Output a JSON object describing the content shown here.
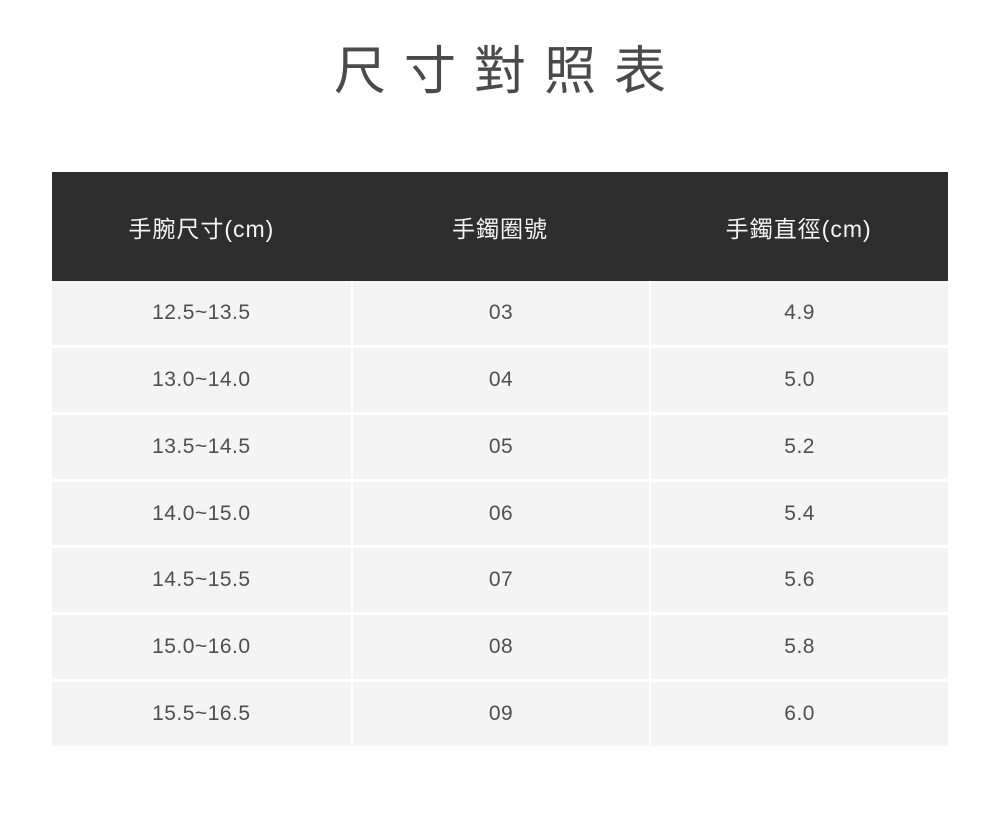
{
  "title": "尺寸對照表",
  "chart_data": {
    "type": "table",
    "title": "尺寸對照表",
    "columns": [
      "手腕尺寸(cm)",
      "手鐲圈號",
      "手鐲直徑(cm)"
    ],
    "rows": [
      [
        "12.5~13.5",
        "03",
        "4.9"
      ],
      [
        "13.0~14.0",
        "04",
        "5.0"
      ],
      [
        "13.5~14.5",
        "05",
        "5.2"
      ],
      [
        "14.0~15.0",
        "06",
        "5.4"
      ],
      [
        "14.5~15.5",
        "07",
        "5.6"
      ],
      [
        "15.0~16.0",
        "08",
        "5.8"
      ],
      [
        "15.5~16.5",
        "09",
        "6.0"
      ]
    ]
  },
  "colors": {
    "page_bg": "#ffffff",
    "header_bg": "#2e2e2e",
    "header_text": "#f5f5f5",
    "row_bg": "#f4f4f4",
    "divider": "#ffffff",
    "body_text": "#4f4f4f",
    "title_text": "#4a4a4a"
  }
}
